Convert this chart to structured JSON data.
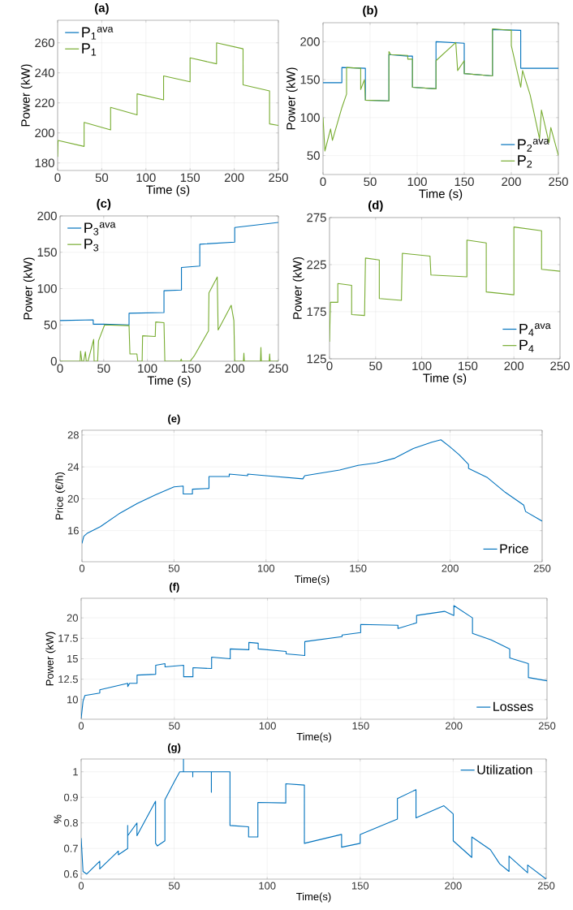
{
  "chart_data": [
    {
      "type": "line",
      "title": "(a)",
      "xlabel": "Time (s)",
      "ylabel": "Power (kW)",
      "xlim": [
        0,
        250
      ],
      "ylim": [
        175,
        275
      ],
      "xticks": [
        0,
        50,
        100,
        150,
        200,
        250
      ],
      "yticks": [
        180,
        200,
        220,
        240,
        260
      ],
      "grid": true,
      "legend": "top left",
      "x": [
        0,
        0.5,
        30,
        30,
        60,
        60,
        90,
        90,
        120,
        120,
        150,
        150,
        180,
        180,
        210,
        210,
        240,
        240,
        250
      ],
      "series": [
        {
          "name": "P$_{1}$$^{ava}$",
          "color": "#0072bd",
          "values": [
            null,
            null,
            null,
            null,
            null,
            null,
            null,
            null,
            null,
            null,
            null,
            null,
            null,
            null,
            null,
            null,
            null,
            null,
            null
          ]
        },
        {
          "name": "P$_{1}$",
          "color": "#77ac30",
          "values": [
            184,
            195,
            191,
            207,
            202,
            217,
            212,
            226,
            222,
            238,
            234,
            250,
            246,
            260,
            256,
            232,
            228,
            206,
            205
          ]
        }
      ]
    },
    {
      "type": "line",
      "title": "(b)",
      "xlabel": "Time (s)",
      "ylabel": "Power (kW)",
      "xlim": [
        0,
        250
      ],
      "ylim": [
        25,
        225
      ],
      "xticks": [
        0,
        50,
        100,
        150,
        200,
        250
      ],
      "yticks": [
        50,
        100,
        150,
        200
      ],
      "grid": true,
      "legend": "bottom right",
      "series": [
        {
          "name": "P$_{2}$$^{ava}$",
          "color": "#0072bd",
          "x": [
            0,
            20,
            20,
            45,
            45,
            70,
            70,
            90,
            95,
            95,
            120,
            120,
            150,
            150,
            180,
            180,
            210,
            210,
            250
          ],
          "values": [
            146,
            146,
            166,
            165,
            123,
            122,
            183,
            181,
            181,
            140,
            138,
            200,
            198,
            158,
            155,
            216,
            215,
            165,
            165
          ]
        },
        {
          "name": "P$_{2}$",
          "color": "#77ac30",
          "x": [
            0,
            2,
            8,
            10,
            20,
            25,
            25,
            40,
            40,
            44,
            45,
            70,
            70,
            72,
            90,
            90,
            95,
            95,
            120,
            120,
            141,
            143,
            150,
            150,
            180,
            180,
            200,
            200,
            210,
            212,
            220,
            230,
            232,
            240,
            242,
            250
          ],
          "values": [
            100,
            56,
            85,
            70,
            113,
            131,
            166,
            165,
            137,
            150,
            123,
            122,
            187,
            183,
            182,
            177,
            177,
            140,
            138,
            175,
            199,
            162,
            175,
            158,
            155,
            217,
            215,
            195,
            140,
            162,
            130,
            72,
            110,
            67,
            87,
            50
          ]
        }
      ]
    },
    {
      "type": "line",
      "title": "(c)",
      "xlabel": "Time (s)",
      "ylabel": "Power (kW)",
      "xlim": [
        0,
        250
      ],
      "ylim": [
        0,
        200
      ],
      "xticks": [
        0,
        50,
        100,
        150,
        200,
        250
      ],
      "yticks": [
        0,
        50,
        100,
        150,
        200
      ],
      "grid": true,
      "legend": "top left",
      "series": [
        {
          "name": "P$_{3}$$^{ava}$",
          "color": "#0072bd",
          "x": [
            0,
            38,
            38,
            50,
            79,
            79,
            119,
            119,
            139,
            139,
            160,
            160,
            200,
            200,
            250
          ],
          "values": [
            56,
            57,
            51,
            51,
            50,
            66,
            67,
            97,
            98,
            129,
            131,
            161,
            164,
            184,
            191
          ]
        },
        {
          "name": "P$_{3}$",
          "color": "#77ac30",
          "x": [
            0,
            23,
            23.5,
            25,
            27,
            29,
            30,
            32,
            38.5,
            39,
            43,
            44,
            51,
            79,
            80,
            88,
            89,
            94,
            94.5,
            109,
            109.5,
            119,
            120,
            138,
            138.7,
            139.5,
            149,
            154,
            170,
            170.5,
            180,
            181,
            196,
            199,
            200,
            210,
            210.5,
            211,
            229.5,
            230,
            230.5,
            239.5,
            240,
            240.5,
            250
          ],
          "values": [
            0,
            0,
            14,
            0,
            0,
            13,
            0,
            0,
            30,
            0,
            0,
            28,
            50,
            49,
            10,
            10,
            0,
            0,
            35,
            34,
            54,
            53,
            0,
            0,
            3,
            0,
            0,
            8,
            42,
            94,
            116,
            43,
            77,
            56,
            0,
            0,
            11,
            0,
            0,
            19,
            0,
            0,
            10,
            0,
            0
          ]
        }
      ]
    },
    {
      "type": "line",
      "title": "(d)",
      "xlabel": "Time (s)",
      "ylabel": "Power (kW)",
      "xlim": [
        0,
        250
      ],
      "ylim": [
        125,
        275
      ],
      "xticks": [
        0,
        50,
        100,
        150,
        200,
        250
      ],
      "yticks": [
        125,
        175,
        225,
        275
      ],
      "grid": true,
      "legend": "bottom right",
      "x": [
        0,
        1,
        9,
        9,
        24,
        24,
        38,
        39,
        54,
        54,
        78,
        79,
        109,
        110,
        149,
        149,
        170,
        170,
        200,
        200,
        230,
        230,
        250
      ],
      "series": [
        {
          "name": "P$_{4}$$^{ava}$",
          "color": "#0072bd",
          "values": [
            null,
            null,
            null,
            null,
            null,
            null,
            null,
            null,
            null,
            null,
            null,
            null,
            null,
            null,
            null,
            null,
            null,
            null,
            null,
            null,
            null,
            null,
            null
          ]
        },
        {
          "name": "P$_{4}$",
          "color": "#77ac30",
          "values": [
            143,
            185,
            185,
            205,
            203,
            172,
            171,
            232,
            230,
            189,
            187,
            237,
            234,
            214,
            212,
            251,
            248,
            196,
            193,
            265,
            261,
            220,
            218
          ]
        }
      ]
    },
    {
      "type": "line",
      "title": "(e)",
      "xlabel": "Time(s)",
      "ylabel": "Price (€/h)",
      "xlim": [
        0,
        250
      ],
      "ylim": [
        12.1,
        28.6
      ],
      "xticks": [
        0,
        50,
        100,
        150,
        200,
        250
      ],
      "yticks": [
        16,
        20,
        24,
        28
      ],
      "grid": true,
      "legend": "bottom right",
      "series": [
        {
          "name": "Price",
          "color": "#0072bd",
          "x": [
            0,
            1,
            3,
            10,
            20,
            30,
            40,
            50,
            55,
            55,
            60,
            60,
            69,
            69,
            80,
            80,
            90,
            90,
            100,
            120,
            121,
            140,
            150,
            160,
            170,
            180,
            190,
            195,
            200,
            205,
            210,
            210,
            220,
            230,
            240,
            241,
            250
          ],
          "values": [
            14.4,
            15.3,
            15.7,
            16.5,
            18.1,
            19.4,
            20.5,
            21.5,
            21.6,
            20.6,
            20.6,
            21.2,
            21.3,
            22.8,
            22.8,
            23.1,
            22.9,
            23.1,
            22.9,
            22.5,
            22.9,
            23.6,
            24.2,
            24.5,
            25.1,
            26.3,
            27.1,
            27.4,
            26.5,
            25.5,
            24.3,
            23.8,
            22.7,
            20.8,
            19.2,
            18.4,
            17.2
          ]
        }
      ]
    },
    {
      "type": "line",
      "title": "(f)",
      "xlabel": "Time(s)",
      "ylabel": "Power (kW)",
      "xlim": [
        0,
        250
      ],
      "ylim": [
        7.6,
        22.4
      ],
      "xticks": [
        0,
        50,
        100,
        150,
        200,
        250
      ],
      "yticks": [
        10,
        12.5,
        15,
        17.5,
        20
      ],
      "grid": true,
      "legend": "bottom right",
      "series": [
        {
          "name": "Losses",
          "color": "#0072bd",
          "x": [
            0,
            1,
            2,
            10,
            10,
            25,
            25,
            26,
            30,
            30,
            40,
            40,
            45,
            45,
            55,
            55,
            60,
            60,
            70,
            70,
            80,
            80,
            90,
            90,
            95,
            95,
            110,
            110,
            120,
            120,
            140,
            140,
            150,
            150,
            170,
            170,
            180,
            180,
            195,
            200,
            200,
            210,
            210,
            220,
            230,
            230,
            240,
            240,
            250
          ],
          "values": [
            7.7,
            9.8,
            10.5,
            10.8,
            11.2,
            12.0,
            11.6,
            12,
            12,
            13.0,
            13.1,
            14.2,
            14.4,
            14,
            14.2,
            12.8,
            12.8,
            13.9,
            13.8,
            15.2,
            15,
            16.2,
            16.1,
            17,
            16.9,
            16.2,
            15.9,
            15.6,
            15.4,
            17.1,
            17.7,
            17.9,
            18.2,
            19.2,
            19.1,
            18.7,
            19.4,
            20.3,
            20.8,
            20.3,
            21.5,
            20,
            18.1,
            17.3,
            16.2,
            15.1,
            14.4,
            12.7,
            12.3
          ]
        }
      ]
    },
    {
      "type": "line",
      "title": "(g)",
      "xlabel": "Time(s)",
      "ylabel": "%",
      "xlim": [
        0,
        250
      ],
      "ylim": [
        0.58,
        1.05
      ],
      "xticks": [
        0,
        50,
        100,
        150,
        200,
        250
      ],
      "yticks": [
        0.6,
        0.7,
        0.8,
        0.9,
        1
      ],
      "grid": true,
      "legend": "top right",
      "series": [
        {
          "name": "Utilization",
          "color": "#0072bd",
          "x": [
            0,
            1,
            3,
            10,
            10,
            20,
            20,
            25,
            25,
            25,
            30,
            30,
            40,
            40,
            41,
            45,
            45,
            50,
            53,
            55,
            55,
            55,
            60,
            60,
            60,
            70,
            70,
            70,
            80,
            80,
            90,
            90,
            95,
            95,
            110,
            110,
            120,
            120,
            140,
            140,
            150,
            150,
            160,
            170,
            170,
            180,
            180,
            195,
            200,
            200,
            210,
            210,
            220,
            225,
            230,
            230,
            240,
            240,
            250
          ],
          "values": [
            0.74,
            0.61,
            0.6,
            0.65,
            0.62,
            0.69,
            0.675,
            0.7,
            0.79,
            0.75,
            0.8,
            0.75,
            0.885,
            0.72,
            0.71,
            0.73,
            0.89,
            0.96,
            1.0,
            1.0,
            1.05,
            1.0,
            1.0,
            0.98,
            1.0,
            1.0,
            0.92,
            1.0,
            1.0,
            0.79,
            0.785,
            0.745,
            0.745,
            0.88,
            0.878,
            0.953,
            0.948,
            0.72,
            0.755,
            0.705,
            0.72,
            0.755,
            0.785,
            0.815,
            0.895,
            0.93,
            0.82,
            0.867,
            0.835,
            0.73,
            0.665,
            0.745,
            0.695,
            0.64,
            0.61,
            0.67,
            0.605,
            0.635,
            0.58
          ]
        }
      ]
    }
  ]
}
